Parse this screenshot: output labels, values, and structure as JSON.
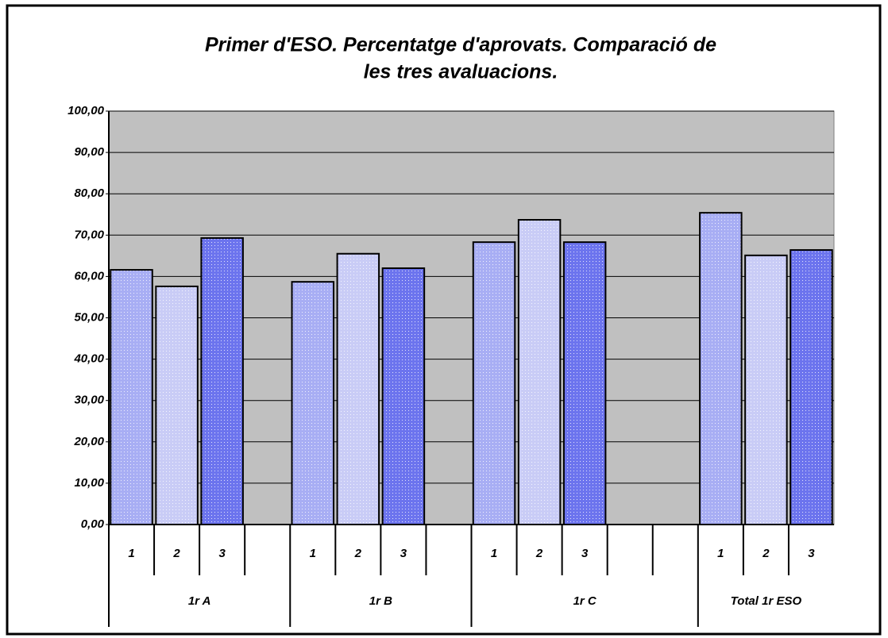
{
  "chart_data": {
    "type": "bar",
    "title": [
      "Primer d'ESO. Percentatge d'aprovats.  Comparació de",
      "les tres avaluacions."
    ],
    "categories": [
      "1",
      "2",
      "3",
      null,
      "1",
      "2",
      "3",
      null,
      "1",
      "2",
      "3",
      null,
      null,
      "1",
      "2",
      "3"
    ],
    "groups": [
      {
        "label": "1r A",
        "span": 4
      },
      {
        "label": "1r B",
        "span": 4
      },
      {
        "label": "1r C",
        "span": 5
      },
      {
        "label": "Total 1r ESO",
        "span": 3
      }
    ],
    "values": [
      61.6,
      57.6,
      69.3,
      null,
      58.7,
      65.5,
      62,
      null,
      68.3,
      73.7,
      68.3,
      null,
      null,
      75.4,
      65.1,
      66.4
    ],
    "bar_colors": [
      "#a8aef4",
      "#c9ccf6",
      "#6c74ee"
    ],
    "background": "#c0c0c0",
    "ylim": [
      0,
      100
    ],
    "yticks": [
      {
        "value": 0,
        "label": "0,00"
      },
      {
        "value": 10,
        "label": "10,00"
      },
      {
        "value": 20,
        "label": "20,00"
      },
      {
        "value": 30,
        "label": "30,00"
      },
      {
        "value": 40,
        "label": "40,00"
      },
      {
        "value": 50,
        "label": "50,00"
      },
      {
        "value": 60,
        "label": "60,00"
      },
      {
        "value": 70,
        "label": "70,00"
      },
      {
        "value": 80,
        "label": "80,00"
      },
      {
        "value": 90,
        "label": "90,00"
      },
      {
        "value": 100,
        "label": "100,00"
      }
    ],
    "grid": true
  }
}
